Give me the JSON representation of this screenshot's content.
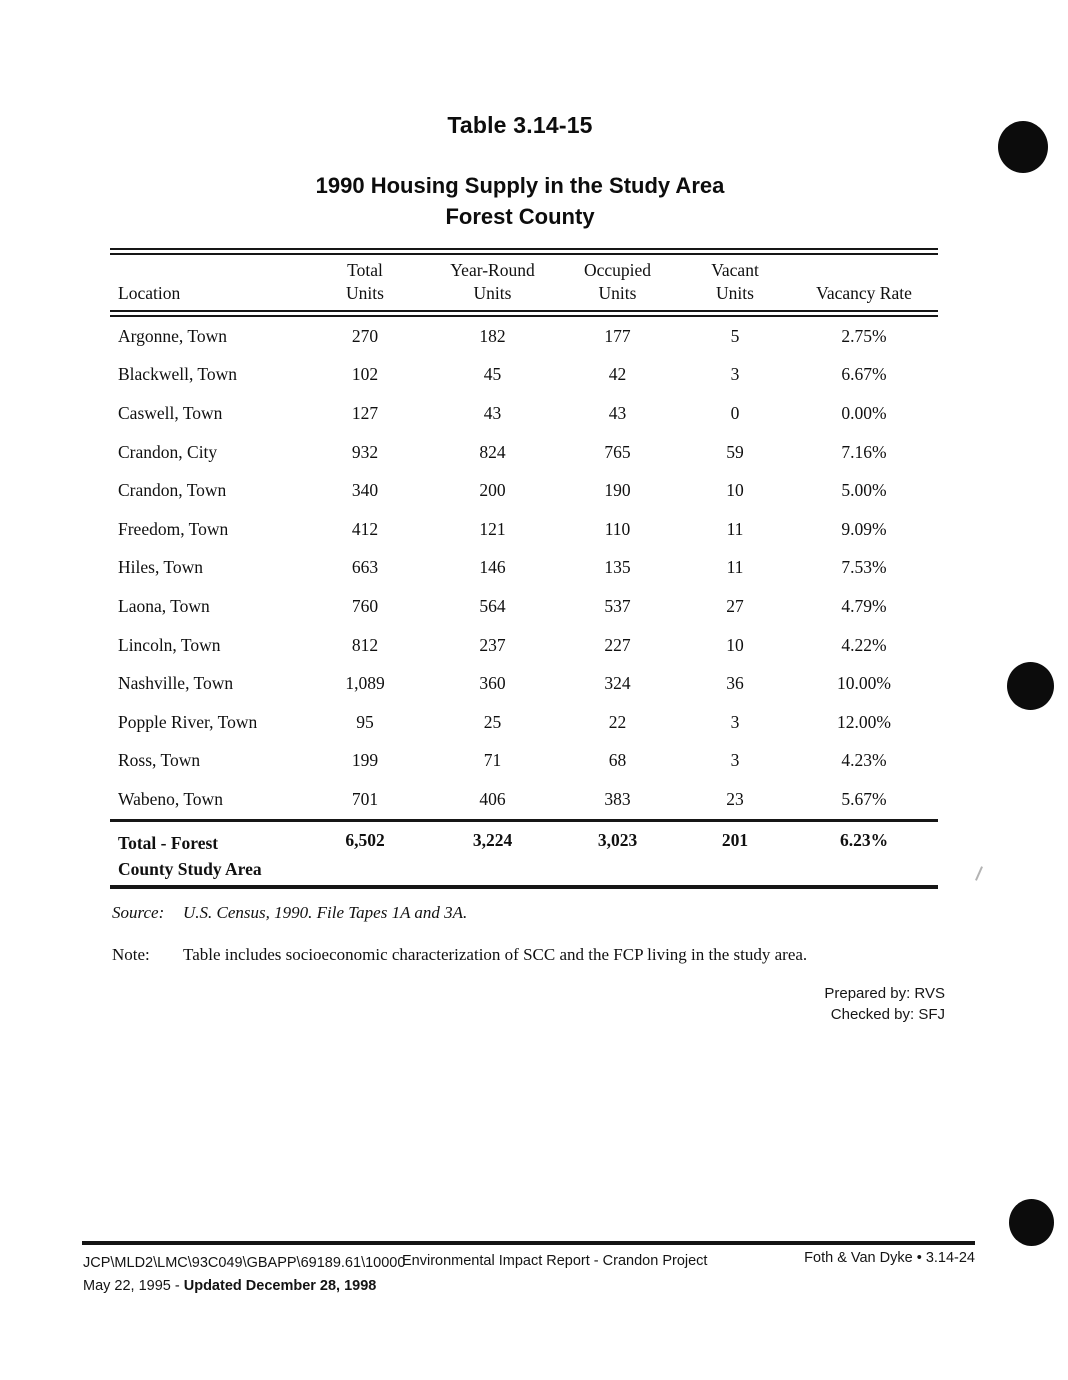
{
  "title": "Table 3.14-15",
  "subtitle_line1": "1990 Housing Supply in the Study Area",
  "subtitle_line2": "Forest County",
  "table": {
    "header": {
      "location": "Location",
      "col1_line1": "Total",
      "col1_line2": "Units",
      "col2_line1": "Year-Round",
      "col2_line2": "Units",
      "col3_line1": "Occupied",
      "col3_line2": "Units",
      "col4_line1": "Vacant",
      "col4_line2": "Units",
      "col5": "Vacancy Rate"
    },
    "rows": [
      [
        "Argonne, Town",
        "270",
        "182",
        "177",
        "5",
        "2.75%"
      ],
      [
        "Blackwell, Town",
        "102",
        "45",
        "42",
        "3",
        "6.67%"
      ],
      [
        "Caswell, Town",
        "127",
        "43",
        "43",
        "0",
        "0.00%"
      ],
      [
        "Crandon, City",
        "932",
        "824",
        "765",
        "59",
        "7.16%"
      ],
      [
        "Crandon, Town",
        "340",
        "200",
        "190",
        "10",
        "5.00%"
      ],
      [
        "Freedom, Town",
        "412",
        "121",
        "110",
        "11",
        "9.09%"
      ],
      [
        "Hiles, Town",
        "663",
        "146",
        "135",
        "11",
        "7.53%"
      ],
      [
        "Laona, Town",
        "760",
        "564",
        "537",
        "27",
        "4.79%"
      ],
      [
        "Lincoln, Town",
        "812",
        "237",
        "227",
        "10",
        "4.22%"
      ],
      [
        "Nashville, Town",
        "1,089",
        "360",
        "324",
        "36",
        "10.00%"
      ],
      [
        "Popple River, Town",
        "95",
        "25",
        "22",
        "3",
        "12.00%"
      ],
      [
        "Ross, Town",
        "199",
        "71",
        "68",
        "3",
        "4.23%"
      ],
      [
        "Wabeno, Town",
        "701",
        "406",
        "383",
        "23",
        "5.67%"
      ]
    ],
    "total": {
      "label_line1": "Total - Forest",
      "label_line2": "County Study Area",
      "values": [
        "6,502",
        "3,224",
        "3,023",
        "201",
        "6.23%"
      ]
    }
  },
  "source": {
    "label": "Source:",
    "text": "U.S. Census, 1990.  File Tapes 1A and 3A."
  },
  "note": {
    "label": "Note:",
    "text": "Table includes socioeconomic characterization of SCC and the FCP living in the study area."
  },
  "sign": {
    "prepared_by": "Prepared by: RVS",
    "checked_by": "Checked by: SFJ"
  },
  "footer": {
    "file_path": "JCP\\MLD2\\LMC\\93C049\\GBAPP\\69189.61\\10000",
    "date_prefix": "May 22, 1995 - ",
    "date_bold": "Updated December 28, 1998",
    "center": "Environmental Impact Report - Crandon Project",
    "right": "Foth & Van Dyke • 3.14-24"
  },
  "colors": {
    "ink": "#111111",
    "paper": "#ffffff",
    "hole_punch": "#0c0c0c"
  }
}
